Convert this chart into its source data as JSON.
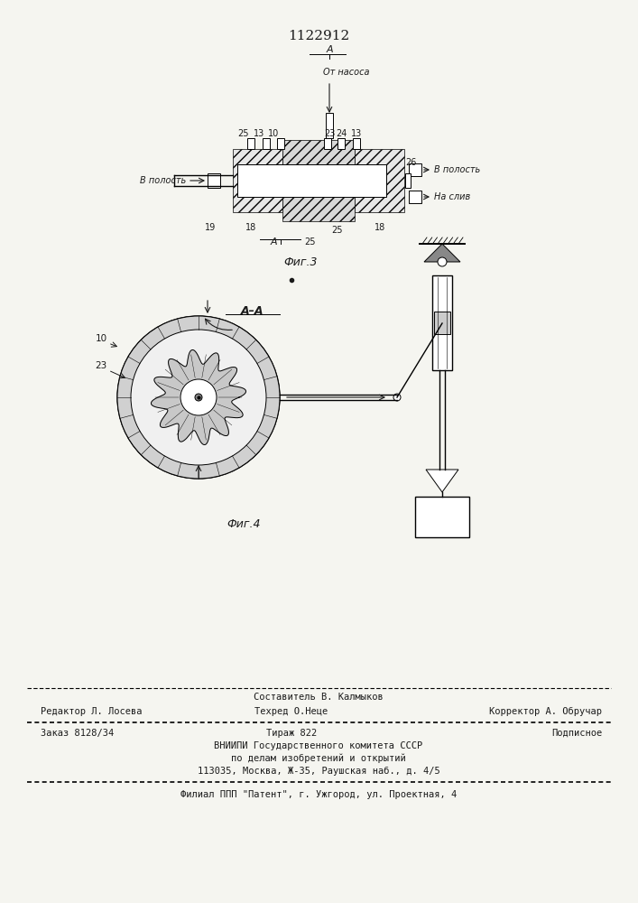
{
  "title": "1122912",
  "title_fontsize": 11,
  "background_color": "#f5f5f0",
  "fig3_caption": "Фиг.3",
  "fig4_caption": "Фиг.4",
  "fig3_label_A_top": "А",
  "fig3_label_A_bot": "А",
  "footer_line1_center": "Составитель В. Калмыков",
  "footer_line2_left": "Редактор Л. Лосева",
  "footer_line2_mid": "Техред О.Неце",
  "footer_line2_right": "Корректор А. Обручар",
  "footer_line3_left": "Заказ 8128/34",
  "footer_line3_mid": "Тираж 822",
  "footer_line3_right": "Подписное",
  "footer_line4": "ВНИИПИ Государственного комитета СССР",
  "footer_line5": "по делам изобретений и открытий",
  "footer_line6": "113035, Москва, Ж-35, Раушская наб., д. 4/5",
  "footer_line7": "Филиал ППП \"Патент\", г. Ужгород, ул. Проектная, 4",
  "font_family": "monospace",
  "text_color": "#1a1a1a"
}
